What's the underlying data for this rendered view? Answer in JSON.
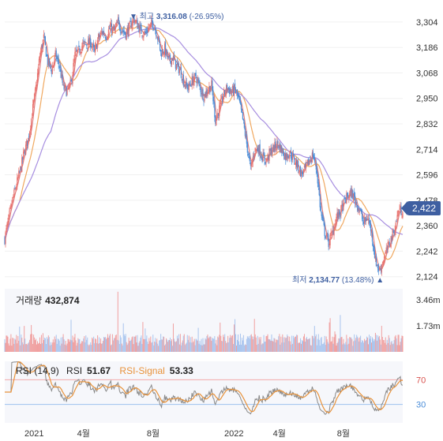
{
  "chart_data": {
    "type": "candlestick",
    "x_ticks": [
      "2021",
      "4월",
      "8월",
      "2022",
      "4월",
      "8월"
    ],
    "price_axis": {
      "ticks": [
        3304,
        3186,
        3068,
        2950,
        2832,
        2714,
        2596,
        2478,
        2360,
        2242,
        2124
      ],
      "tick_labels": [
        "3,304",
        "3,186",
        "3,068",
        "2,950",
        "2,832",
        "2,714",
        "2,596",
        "2,478",
        "2,360",
        "2,242",
        "2,124"
      ],
      "range": [
        2090,
        3340
      ]
    },
    "current_price": 2422,
    "current_price_label": "2,422",
    "high_marker": {
      "prefix": "▼ 최고",
      "value": "3,316.08",
      "pct": "(-26.95%)"
    },
    "low_marker": {
      "prefix": "최저",
      "value": "2,134.77",
      "pct": "(13.48%)",
      "suffix": "▲"
    },
    "price_anchor_points": [
      [
        0,
        2300
      ],
      [
        10,
        2480
      ],
      [
        20,
        2620
      ],
      [
        25,
        2700
      ],
      [
        30,
        2760
      ],
      [
        35,
        2880
      ],
      [
        40,
        3000
      ],
      [
        45,
        3150
      ],
      [
        50,
        3230
      ],
      [
        55,
        3120
      ],
      [
        60,
        3080
      ],
      [
        65,
        3150
      ],
      [
        70,
        3100
      ],
      [
        75,
        3000
      ],
      [
        80,
        2980
      ],
      [
        85,
        3020
      ],
      [
        90,
        3150
      ],
      [
        95,
        3170
      ],
      [
        100,
        3200
      ],
      [
        105,
        3200
      ],
      [
        110,
        3210
      ],
      [
        115,
        3160
      ],
      [
        120,
        3230
      ],
      [
        125,
        3260
      ],
      [
        130,
        3240
      ],
      [
        135,
        3280
      ],
      [
        140,
        3260
      ],
      [
        145,
        3300
      ],
      [
        150,
        3270
      ],
      [
        155,
        3250
      ],
      [
        160,
        3280
      ],
      [
        165,
        3320
      ],
      [
        170,
        3290
      ],
      [
        175,
        3260
      ],
      [
        180,
        3250
      ],
      [
        185,
        3280
      ],
      [
        190,
        3300
      ],
      [
        195,
        3250
      ],
      [
        200,
        3160
      ],
      [
        205,
        3180
      ],
      [
        210,
        3120
      ],
      [
        215,
        3140
      ],
      [
        220,
        3100
      ],
      [
        225,
        3080
      ],
      [
        230,
        3020
      ],
      [
        235,
        3000
      ],
      [
        240,
        3030
      ],
      [
        245,
        3050
      ],
      [
        250,
        3000
      ],
      [
        255,
        2960
      ],
      [
        260,
        2990
      ],
      [
        265,
        3010
      ],
      [
        270,
        2850
      ],
      [
        275,
        2900
      ],
      [
        280,
        2960
      ],
      [
        285,
        3000
      ],
      [
        290,
        2980
      ],
      [
        295,
        2990
      ],
      [
        300,
        2940
      ],
      [
        305,
        2850
      ],
      [
        310,
        2740
      ],
      [
        315,
        2620
      ],
      [
        320,
        2710
      ],
      [
        325,
        2720
      ],
      [
        330,
        2680
      ],
      [
        335,
        2660
      ],
      [
        340,
        2700
      ],
      [
        345,
        2720
      ],
      [
        350,
        2740
      ],
      [
        355,
        2710
      ],
      [
        360,
        2680
      ],
      [
        365,
        2700
      ],
      [
        370,
        2670
      ],
      [
        375,
        2640
      ],
      [
        380,
        2600
      ],
      [
        385,
        2620
      ],
      [
        390,
        2660
      ],
      [
        395,
        2690
      ],
      [
        400,
        2610
      ],
      [
        405,
        2420
      ],
      [
        410,
        2330
      ],
      [
        415,
        2280
      ],
      [
        420,
        2330
      ],
      [
        425,
        2400
      ],
      [
        430,
        2420
      ],
      [
        435,
        2470
      ],
      [
        440,
        2500
      ],
      [
        445,
        2510
      ],
      [
        450,
        2470
      ],
      [
        455,
        2430
      ],
      [
        460,
        2370
      ],
      [
        465,
        2400
      ],
      [
        470,
        2330
      ],
      [
        475,
        2200
      ],
      [
        480,
        2150
      ],
      [
        485,
        2200
      ],
      [
        490,
        2250
      ],
      [
        495,
        2300
      ],
      [
        500,
        2350
      ],
      [
        505,
        2440
      ],
      [
        510,
        2422
      ]
    ],
    "volume": {
      "label": "거래량",
      "value": "432,874",
      "ticks": [
        3460000,
        1730000
      ],
      "tick_labels": [
        "3.46m",
        "1.73m"
      ],
      "max": 4200000
    },
    "rsi": {
      "label": "RSI (14,9)",
      "rsi_name": "RSI",
      "rsi_value": "51.67",
      "signal_name": "RSI-Signal",
      "signal_value": "53.33",
      "upper": 70,
      "lower": 30,
      "upper_label": "70",
      "lower_label": "30"
    },
    "colors": {
      "up": "#e8706c",
      "down": "#4a8dd8",
      "ma5": "#e07a7a",
      "ma20": "#f0a860",
      "ma60": "#a78ee0",
      "rsi_line": "#888888",
      "rsi_signal": "#e8923a",
      "accent": "#3e5fa1"
    }
  }
}
